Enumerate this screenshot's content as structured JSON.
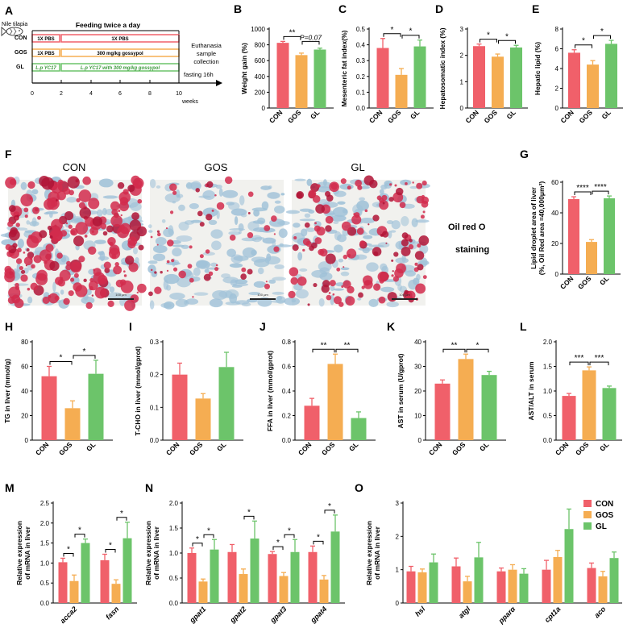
{
  "figure": {
    "panel_letters": [
      "A",
      "B",
      "C",
      "D",
      "E",
      "F",
      "G",
      "H",
      "I",
      "J",
      "K",
      "L",
      "M",
      "N",
      "O"
    ]
  },
  "colors": {
    "con": "#f0606a",
    "gos": "#f5ad52",
    "gl": "#6cc46a",
    "timeline_gl_text": "#3c9a3c"
  },
  "panel_a": {
    "species": "Nile tilapia",
    "header": "Feeding twice a day",
    "rows": [
      {
        "group": "CON",
        "first": "1X PBS",
        "second": "1X PBS"
      },
      {
        "group": "GOS",
        "first": "1X PBS",
        "second": "300 mg/kg gossypol"
      },
      {
        "group": "GL",
        "first": "L.p YC17",
        "second": "L.p YC17 with 300 mg/kg gossypol"
      }
    ],
    "end_note": [
      "Euthanasia",
      "sample",
      "collection"
    ],
    "fasting": "fasting 16h",
    "ticks": [
      "0",
      "2",
      "4",
      "6",
      "8",
      "10"
    ],
    "unit": "weeks"
  },
  "panel_f": {
    "labels": [
      "CON",
      "GOS",
      "GL"
    ],
    "stain_label": [
      "Oil red O",
      "staining"
    ],
    "scalebar": "100 μm",
    "stain_density": [
      0.78,
      0.2,
      0.52
    ]
  },
  "chart_data": [
    {
      "id": "B",
      "type": "bar",
      "categories": [
        "CON",
        "GOS",
        "GL"
      ],
      "values": [
        825,
        670,
        740
      ],
      "errors": [
        18,
        25,
        18
      ],
      "ylabel": "Weight gain (%)",
      "ylim": [
        0,
        1000
      ],
      "yticks": [
        0,
        200,
        400,
        600,
        800,
        1000
      ],
      "annotations": [
        {
          "from": 0,
          "to": 1,
          "label": "**"
        },
        {
          "from": 1,
          "to": 2,
          "label": "P=0.07",
          "italic": true
        }
      ]
    },
    {
      "id": "C",
      "type": "bar",
      "categories": [
        "CON",
        "GOS",
        "GL"
      ],
      "values": [
        0.38,
        0.21,
        0.39
      ],
      "errors": [
        0.06,
        0.04,
        0.04
      ],
      "ylabel": "Mesenteric fat index(%)",
      "ylim": [
        0,
        0.5
      ],
      "yticks": [
        0.0,
        0.1,
        0.2,
        0.3,
        0.4,
        0.5
      ],
      "annotations": [
        {
          "from": 0,
          "to": 1,
          "label": "*"
        },
        {
          "from": 1,
          "to": 2,
          "label": "*"
        }
      ]
    },
    {
      "id": "D",
      "type": "bar",
      "categories": [
        "CON",
        "GOS",
        "GL"
      ],
      "values": [
        2.35,
        1.95,
        2.3
      ],
      "errors": [
        0.08,
        0.1,
        0.08
      ],
      "ylabel": "Hepatosomatic index (%)",
      "ylim": [
        0,
        3
      ],
      "yticks": [
        0,
        1,
        2,
        3
      ],
      "annotations": [
        {
          "from": 0,
          "to": 1,
          "label": "*"
        },
        {
          "from": 1,
          "to": 2,
          "label": "*"
        }
      ]
    },
    {
      "id": "E",
      "type": "bar",
      "categories": [
        "CON",
        "GOS",
        "GL"
      ],
      "values": [
        5.6,
        4.4,
        6.5
      ],
      "errors": [
        0.3,
        0.4,
        0.35
      ],
      "ylabel": "Hepatic lipid (%)",
      "ylim": [
        0,
        8
      ],
      "yticks": [
        0,
        2,
        4,
        6,
        8
      ],
      "annotations": [
        {
          "from": 0,
          "to": 1,
          "label": "*"
        },
        {
          "from": 1,
          "to": 2,
          "label": "*"
        }
      ]
    },
    {
      "id": "G",
      "type": "bar",
      "categories": [
        "CON",
        "GOS",
        "GL"
      ],
      "values": [
        49,
        21,
        49.5
      ],
      "errors": [
        1.5,
        1.5,
        1.5
      ],
      "ylabel": "Lipid droplet area of liver (%, Oil Red area =40,000μm²)",
      "ylim": [
        0,
        60
      ],
      "yticks": [
        0,
        20,
        40,
        60
      ],
      "annotations": [
        {
          "from": 0,
          "to": 1,
          "label": "****"
        },
        {
          "from": 1,
          "to": 2,
          "label": "****"
        }
      ]
    },
    {
      "id": "H",
      "type": "bar",
      "categories": [
        "CON",
        "GOS",
        "GL"
      ],
      "values": [
        52,
        26,
        54
      ],
      "errors": [
        8,
        6,
        11
      ],
      "ylabel": "TG in liver (mmol/g)",
      "ylim": [
        0,
        80
      ],
      "yticks": [
        0,
        20,
        40,
        60,
        80
      ],
      "annotations": [
        {
          "from": 0,
          "to": 1,
          "label": "*"
        },
        {
          "from": 1,
          "to": 2,
          "label": "*"
        }
      ]
    },
    {
      "id": "I",
      "type": "bar",
      "categories": [
        "CON",
        "GOS",
        "GL"
      ],
      "values": [
        0.2,
        0.127,
        0.223
      ],
      "errors": [
        0.035,
        0.015,
        0.045
      ],
      "ylabel": "T-CHO in liver (mmol/gprot)",
      "ylim": [
        0,
        0.3
      ],
      "yticks": [
        0.0,
        0.1,
        0.2,
        0.3
      ],
      "annotations": []
    },
    {
      "id": "J",
      "type": "bar",
      "categories": [
        "CON",
        "GOS",
        "GL"
      ],
      "values": [
        0.28,
        0.62,
        0.18
      ],
      "errors": [
        0.06,
        0.08,
        0.05
      ],
      "ylabel": "FFA in liver (mmol/gprot)",
      "ylim": [
        0,
        0.8
      ],
      "yticks": [
        0.0,
        0.2,
        0.4,
        0.6,
        0.8
      ],
      "annotations": [
        {
          "from": 0,
          "to": 1,
          "label": "**"
        },
        {
          "from": 1,
          "to": 2,
          "label": "**"
        }
      ]
    },
    {
      "id": "K",
      "type": "bar",
      "categories": [
        "CON",
        "GOS",
        "GL"
      ],
      "values": [
        23,
        33,
        26.5
      ],
      "errors": [
        1.5,
        2,
        1.5
      ],
      "ylabel": "AST in serum (U/gprot)",
      "ylim": [
        0,
        40
      ],
      "yticks": [
        0,
        10,
        20,
        30,
        40
      ],
      "annotations": [
        {
          "from": 0,
          "to": 1,
          "label": "**"
        },
        {
          "from": 1,
          "to": 2,
          "label": "*"
        }
      ]
    },
    {
      "id": "L",
      "type": "bar",
      "categories": [
        "CON",
        "GOS",
        "GL"
      ],
      "values": [
        0.9,
        1.42,
        1.06
      ],
      "errors": [
        0.05,
        0.07,
        0.04
      ],
      "ylabel": "AST/ALT in serum",
      "ylim": [
        0,
        2.0
      ],
      "yticks": [
        0.0,
        0.5,
        1.0,
        1.5,
        2.0
      ],
      "annotations": [
        {
          "from": 0,
          "to": 1,
          "label": "***"
        },
        {
          "from": 1,
          "to": 2,
          "label": "***"
        }
      ]
    },
    {
      "id": "M",
      "type": "grouped_bar",
      "categories": [
        "acca2",
        "fasn"
      ],
      "series_names": [
        "CON",
        "GOS",
        "GL"
      ],
      "values": [
        [
          1.02,
          0.55,
          1.5
        ],
        [
          1.07,
          0.48,
          1.62
        ]
      ],
      "errors": [
        [
          0.1,
          0.15,
          0.1
        ],
        [
          0.15,
          0.1,
          0.4
        ]
      ],
      "ylabel": "Relative expression of mRNA in liver",
      "ylim": [
        0,
        2.5
      ],
      "yticks": [
        0.0,
        0.5,
        1.0,
        1.5,
        2.0,
        2.5
      ],
      "annotations": [
        {
          "group": 0,
          "from": 0,
          "to": 1,
          "label": "*"
        },
        {
          "group": 0,
          "from": 1,
          "to": 2,
          "label": "*"
        },
        {
          "group": 1,
          "from": 0,
          "to": 1,
          "label": "*"
        },
        {
          "group": 1,
          "from": 1,
          "to": 2,
          "label": "*"
        }
      ]
    },
    {
      "id": "N",
      "type": "grouped_bar",
      "categories": [
        "gpat1",
        "gpat2",
        "gpat3",
        "gpat4"
      ],
      "series_names": [
        "CON",
        "GOS",
        "GL"
      ],
      "values": [
        [
          1.0,
          0.43,
          1.07
        ],
        [
          1.02,
          0.58,
          1.29
        ],
        [
          0.98,
          0.54,
          1.02
        ],
        [
          1.02,
          0.47,
          1.43
        ]
      ],
      "errors": [
        [
          0.1,
          0.05,
          0.2
        ],
        [
          0.15,
          0.1,
          0.35
        ],
        [
          0.05,
          0.07,
          0.25
        ],
        [
          0.12,
          0.08,
          0.33
        ]
      ],
      "ylabel": "Relative expression of mRNA in liver",
      "ylim": [
        0,
        2.0
      ],
      "yticks": [
        0.0,
        0.5,
        1.0,
        1.5,
        2.0
      ],
      "annotations": [
        {
          "group": 0,
          "from": 0,
          "to": 1,
          "label": "*"
        },
        {
          "group": 0,
          "from": 1,
          "to": 2,
          "label": "*"
        },
        {
          "group": 1,
          "from": 1,
          "to": 2,
          "label": "*"
        },
        {
          "group": 2,
          "from": 0,
          "to": 1,
          "label": "*"
        },
        {
          "group": 2,
          "from": 1,
          "to": 2,
          "label": "*"
        },
        {
          "group": 3,
          "from": 0,
          "to": 1,
          "label": "*"
        },
        {
          "group": 3,
          "from": 1,
          "to": 2,
          "label": "*"
        }
      ]
    },
    {
      "id": "O",
      "type": "grouped_bar",
      "categories": [
        "hsl",
        "atgl",
        "pparα",
        "cpt1a",
        "aco"
      ],
      "series_names": [
        "CON",
        "GOS",
        "GL"
      ],
      "values": [
        [
          0.95,
          0.92,
          1.22
        ],
        [
          1.1,
          0.65,
          1.37
        ],
        [
          0.95,
          1.0,
          0.88
        ],
        [
          1.0,
          1.38,
          2.22
        ],
        [
          1.05,
          0.8,
          1.35
        ]
      ],
      "errors": [
        [
          0.15,
          0.1,
          0.25
        ],
        [
          0.25,
          0.15,
          0.45
        ],
        [
          0.1,
          0.15,
          0.15
        ],
        [
          0.28,
          0.2,
          0.6
        ],
        [
          0.15,
          0.15,
          0.18
        ]
      ],
      "ylabel": "Relative expression of mRNA in liver",
      "ylim": [
        0,
        3
      ],
      "yticks": [
        0,
        1,
        2,
        3
      ],
      "legend": [
        "CON",
        "GOS",
        "GL"
      ],
      "legend_position": "top-right",
      "annotations": []
    }
  ]
}
